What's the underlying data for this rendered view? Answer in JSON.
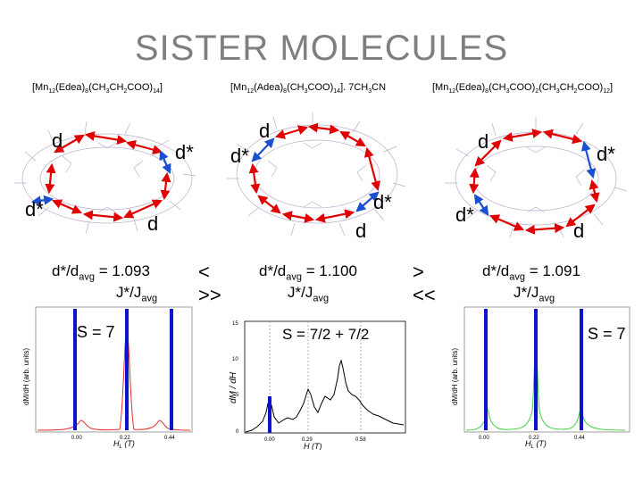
{
  "title": "SISTER MOLECULES",
  "formulas": {
    "left": {
      "main": "[Mn",
      "s1": "12",
      "p2": "(Edea)",
      "s2": "8",
      "p3": "(CH",
      "s3": "3",
      "p4": "CH",
      "s4": "2",
      "p5": "COO)",
      "s5": "14",
      "p6": "]"
    },
    "center": {
      "main": "[Mn",
      "s1": "12",
      "p2": "(Adea)",
      "s2": "8",
      "p3": "(CH",
      "s3": "3",
      "p4": "COO)",
      "s4": "14",
      "p5": "]. 7CH",
      "s5": "3",
      "p6": "CN"
    },
    "right": {
      "main": "[Mn",
      "s1": "12",
      "p2": "(Edea)",
      "s2": "8",
      "p3": "(CH",
      "s3": "3",
      "p4": "COO)",
      "s4": "2",
      "p5": "(CH",
      "s5": "3",
      "p6": "CH",
      "s6": "2",
      "p7": "COO)",
      "s7": "12",
      "p8": "]"
    }
  },
  "bond_labels": {
    "d": "d",
    "d_star": "d*"
  },
  "ratios": {
    "left": {
      "top": "d*/d",
      "sub": "avg",
      "eq": " = 1.093",
      "j": "J*/J",
      "jsub": "avg"
    },
    "center": {
      "top": "d*/d",
      "sub": "avg",
      "eq": " = 1.100",
      "j": "J*/J",
      "jsub": "avg"
    },
    "right": {
      "top": "d*/d",
      "sub": "avg",
      "eq": " = 1.091",
      "j": "J*/J",
      "jsub": "avg"
    }
  },
  "comparisons": {
    "left": {
      "line1": "<",
      "line2": ">>"
    },
    "right": {
      "line1": ">",
      "line2": "<<"
    }
  },
  "plots": {
    "left": {
      "spin_label": "S = 7",
      "ylabel": "dM/dH (arb. units)",
      "xlabel": "H",
      "xlabel_sub": "L",
      "xlabel_unit": " (T)",
      "ticks": [
        "0.00",
        "0.22",
        "0.44"
      ],
      "curve_color": "#e03030"
    },
    "center": {
      "spin_label": "S = 7/2 + 7/2",
      "ylabel": "dM / dH",
      "xlabel": "H (T)",
      "ticks": [
        "0.00",
        "0.29",
        "0.58"
      ],
      "yticks": [
        "0",
        "5",
        "10",
        "15"
      ],
      "curve_color": "#000000"
    },
    "right": {
      "spin_label": "S = 7",
      "ylabel": "dM/dH (arb. units)",
      "xlabel": "H",
      "xlabel_sub": "L",
      "xlabel_unit": " (T)",
      "ticks": [
        "0.00",
        "0.22",
        "0.44"
      ],
      "curve_color": "#40d040"
    }
  },
  "colors": {
    "title": "#7f7f7f",
    "red_arrow": "#e00000",
    "blue_arrow": "#1a4fd0",
    "marker_line": "#0a14c8"
  }
}
